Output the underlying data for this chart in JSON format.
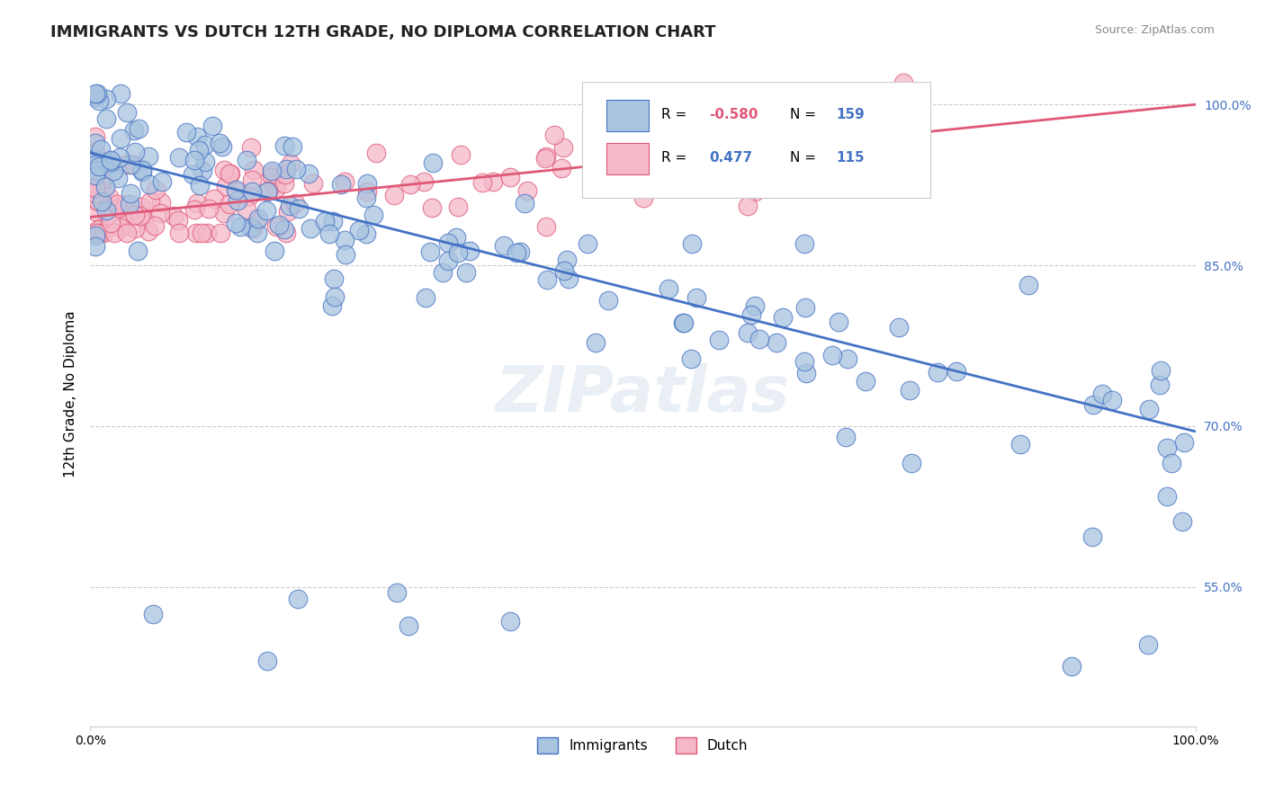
{
  "title": "IMMIGRANTS VS DUTCH 12TH GRADE, NO DIPLOMA CORRELATION CHART",
  "ylabel": "12th Grade, No Diploma",
  "source": "Source: ZipAtlas.com",
  "immigrants_R": -0.58,
  "immigrants_N": 159,
  "dutch_R": 0.477,
  "dutch_N": 115,
  "immigrants_color": "#a8c4e0",
  "immigrants_line_color": "#4472c4",
  "dutch_color": "#f4b8c8",
  "dutch_line_color": "#e05878",
  "background_color": "#ffffff",
  "grid_color": "#cccccc",
  "watermark": "ZIPatlas",
  "xlim": [
    0.0,
    1.0
  ],
  "ylim": [
    0.42,
    1.04
  ],
  "xtick_labels": [
    "0.0%",
    "100.0%"
  ],
  "ytick_labels": [
    "55.0%",
    "70.0%",
    "85.0%",
    "100.0%"
  ],
  "ytick_values": [
    0.55,
    0.7,
    0.85,
    1.0
  ],
  "legend_label_immigrants": "Immigrants",
  "legend_label_dutch": "Dutch",
  "title_fontsize": 13,
  "axis_label_fontsize": 11,
  "tick_fontsize": 10,
  "imm_trend_start": 0.955,
  "imm_trend_slope": -0.26,
  "dutch_trend_start": 0.895,
  "dutch_trend_slope": 0.105
}
